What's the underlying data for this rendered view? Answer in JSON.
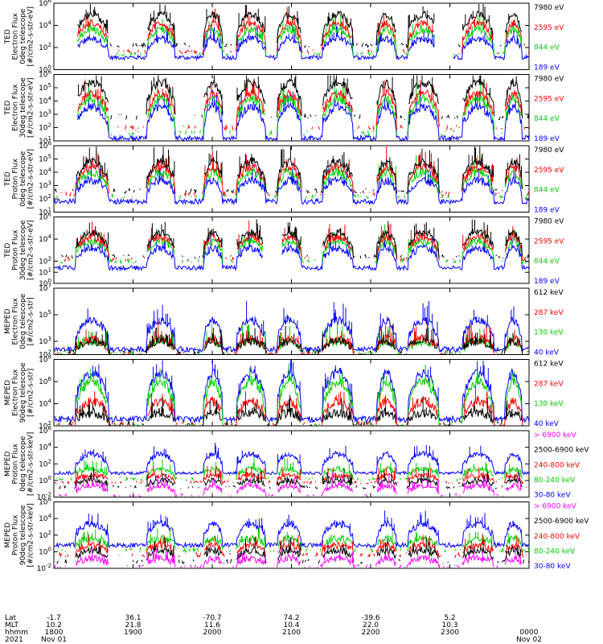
{
  "chart_data": {
    "type": "line",
    "x_start": "1800",
    "x_end": "0000",
    "panels": [
      {
        "ylabel_lines": [
          "TED",
          "Electron Flux",
          "0deg telescope",
          "[#/cm2-s-str-eV]"
        ],
        "ylog": [
          0,
          6
        ],
        "yticks": [
          {
            "exp": 6
          },
          {
            "exp": 4
          },
          {
            "exp": 2
          },
          {
            "exp": 0
          }
        ],
        "legend": [
          {
            "label": "7980 eV",
            "color": "#000000"
          },
          {
            "label": "2595 eV",
            "color": "#ff0000"
          },
          {
            "label": "844 eV",
            "color": "#00d000"
          },
          {
            "label": "189 eV",
            "color": "#0000ff"
          }
        ],
        "levels": [
          [
            2.2,
            1.6,
            1.4,
            1.1
          ],
          [
            5.0,
            4.2,
            3.6,
            2.8
          ]
        ],
        "gaps": [
          0,
          4
        ],
        "slice": "hi"
      },
      {
        "ylabel_lines": [
          "TED",
          "Electron Flux",
          "30deg telescope",
          "[#/cm2-s-str-eV]"
        ],
        "ylog": [
          1,
          6
        ],
        "yticks": [
          {
            "exp": 6
          },
          {
            "exp": 5
          },
          {
            "exp": 4
          },
          {
            "exp": 3
          },
          {
            "exp": 2
          },
          {
            "exp": 1
          }
        ],
        "legend": [
          {
            "label": "7980 eV",
            "color": "#000000"
          },
          {
            "label": "2595 eV",
            "color": "#ff0000"
          },
          {
            "label": "844 eV",
            "color": "#00d000"
          },
          {
            "label": "189 eV",
            "color": "#0000ff"
          }
        ],
        "levels": [
          [
            2.8,
            2.0,
            1.6,
            1.2
          ],
          [
            5.4,
            4.6,
            4.2,
            3.6
          ]
        ],
        "gaps": [
          0
        ],
        "slice": "hi"
      },
      {
        "ylabel_lines": [
          "TED",
          "Proton Flux",
          "0deg telescope",
          "[#/cm2-s-str-eV]"
        ],
        "ylog": [
          1,
          6
        ],
        "yticks": [
          {
            "exp": 6
          },
          {
            "exp": 5
          },
          {
            "exp": 4
          },
          {
            "exp": 3
          },
          {
            "exp": 2
          },
          {
            "exp": 1
          }
        ],
        "legend": [
          {
            "label": "7980 eV",
            "color": "#000000"
          },
          {
            "label": "2595 eV",
            "color": "#ff0000"
          },
          {
            "label": "844 eV",
            "color": "#00d000"
          },
          {
            "label": "189 eV",
            "color": "#0000ff"
          }
        ],
        "levels": [
          [
            2.6,
            2.4,
            2.2,
            1.8
          ],
          [
            4.8,
            4.4,
            4.0,
            3.4
          ]
        ],
        "gaps": [],
        "slice": "hi"
      },
      {
        "ylabel_lines": [
          "TED",
          "Proton Flux",
          "30deg telescope",
          "[#/cm2-s-str-eV]"
        ],
        "ylog": [
          0,
          6
        ],
        "yticks": [
          {
            "exp": 6
          },
          {
            "exp": 4
          },
          {
            "exp": 2
          },
          {
            "exp": 1
          },
          {
            "exp": 0
          }
        ],
        "legend": [
          {
            "label": "7980 eV",
            "color": "#000000"
          },
          {
            "label": "2595 eV",
            "color": "#ff0000"
          },
          {
            "label": "844 eV",
            "color": "#00d000"
          },
          {
            "label": "189 eV",
            "color": "#0000ff"
          }
        ],
        "levels": [
          [
            2.4,
            2.2,
            2.0,
            1.4
          ],
          [
            4.6,
            4.2,
            3.8,
            3.2
          ]
        ],
        "gaps": [
          2
        ],
        "slice": "lo"
      },
      {
        "ylabel_lines": [
          "MEPED",
          "Electron Flux",
          "0deg telescope",
          "[#/cm2-s-str]"
        ],
        "ylog": [
          2,
          7
        ],
        "yticks": [
          {
            "exp": 7
          },
          {
            "exp": 5
          },
          {
            "exp": 3
          },
          {
            "exp": 2
          }
        ],
        "legend": [
          {
            "label": "612 keV",
            "color": "#000000"
          },
          {
            "label": "287 keV",
            "color": "#ff0000"
          },
          {
            "label": "130 keV",
            "color": "#00d000"
          },
          {
            "label": "40 keV",
            "color": "#0000ff"
          }
        ],
        "levels": [
          [
            2.2,
            2.0,
            2.1,
            2.4
          ],
          [
            3.0,
            3.2,
            3.0,
            4.6
          ]
        ],
        "gaps": [],
        "slice": "lo"
      },
      {
        "ylabel_lines": [
          "MEPED",
          "Electron Flux",
          "90deg telescope",
          "[#/cm2-s-str]"
        ],
        "ylog": [
          2,
          8
        ],
        "yticks": [
          {
            "exp": 8
          },
          {
            "exp": 6
          },
          {
            "exp": 4
          },
          {
            "exp": 2
          }
        ],
        "legend": [
          {
            "label": "612 keV",
            "color": "#000000"
          },
          {
            "label": "287 keV",
            "color": "#ff0000"
          },
          {
            "label": "130 keV",
            "color": "#00d000"
          },
          {
            "label": "40 keV",
            "color": "#0000ff"
          }
        ],
        "levels": [
          [
            2.2,
            2.1,
            2.0,
            2.6
          ],
          [
            3.2,
            4.2,
            6.0,
            6.8
          ]
        ],
        "gaps": [],
        "slice": "wide"
      },
      {
        "ylabel_lines": [
          "MEPED",
          "Proton Flux",
          "0deg telescope",
          "[#/cm2-s-str-keV]"
        ],
        "ylog": [
          -2,
          6
        ],
        "yticks": [
          {
            "exp": 6
          },
          {
            "exp": 4
          },
          {
            "exp": 2
          },
          {
            "exp": 0
          },
          {
            "exp": -2
          }
        ],
        "legend": [
          {
            "label": "> 6900 keV",
            "color": "#ff00ff"
          },
          {
            "label": "2500-6900 keV",
            "color": "#000000"
          },
          {
            "label": "240-800 keV",
            "color": "#ff0000"
          },
          {
            "label": "80-240 keV",
            "color": "#00d000"
          },
          {
            "label": "30-80 keV",
            "color": "#0000ff"
          }
        ],
        "levels": [
          [
            -1.8,
            -0.8,
            -0.2,
            0.2,
            0.9
          ],
          [
            -0.6,
            0.0,
            0.6,
            1.4,
            3.2
          ]
        ],
        "gaps": [],
        "slice": "lo"
      },
      {
        "ylabel_lines": [
          "MEPED",
          "Proton Flux",
          "90deg telescope",
          "[#/cm2-s-str-keV]"
        ],
        "ylog": [
          -2,
          6
        ],
        "yticks": [
          {
            "exp": 6
          },
          {
            "exp": 4
          },
          {
            "exp": 2
          },
          {
            "exp": 0
          },
          {
            "exp": -2
          }
        ],
        "legend": [
          {
            "label": "> 6900 keV",
            "color": "#ff00ff"
          },
          {
            "label": "2500-6900 keV",
            "color": "#000000"
          },
          {
            "label": "240-800 keV",
            "color": "#ff0000"
          },
          {
            "label": "80-240 keV",
            "color": "#00d000"
          },
          {
            "label": "30-80 keV",
            "color": "#0000ff"
          }
        ],
        "levels": [
          [
            -1.8,
            -1.2,
            -0.4,
            0.2,
            0.8
          ],
          [
            -0.8,
            0.2,
            0.8,
            1.6,
            3.4
          ]
        ],
        "gaps": [],
        "slice": "wide"
      }
    ],
    "footer": {
      "row_labels": [
        "Lat",
        "MLT",
        "hhmm",
        "2021"
      ],
      "columns": [
        {
          "lat": "-1.7",
          "mlt": "10.2",
          "hhmm": "1800",
          "date": "Nov 01"
        },
        {
          "lat": "36.1",
          "mlt": "21.8",
          "hhmm": "1900",
          "date": ""
        },
        {
          "lat": "-70.7",
          "mlt": "11.6",
          "hhmm": "2000",
          "date": ""
        },
        {
          "lat": "74.2",
          "mlt": "10.4",
          "hhmm": "2100",
          "date": ""
        },
        {
          "lat": "-39.6",
          "mlt": "22.0",
          "hhmm": "2200",
          "date": ""
        },
        {
          "lat": "5.2",
          "mlt": "10.3",
          "hhmm": "2300",
          "date": ""
        },
        {
          "lat": "",
          "mlt": "",
          "hhmm": "0000",
          "date": "Nov 02"
        }
      ]
    }
  }
}
